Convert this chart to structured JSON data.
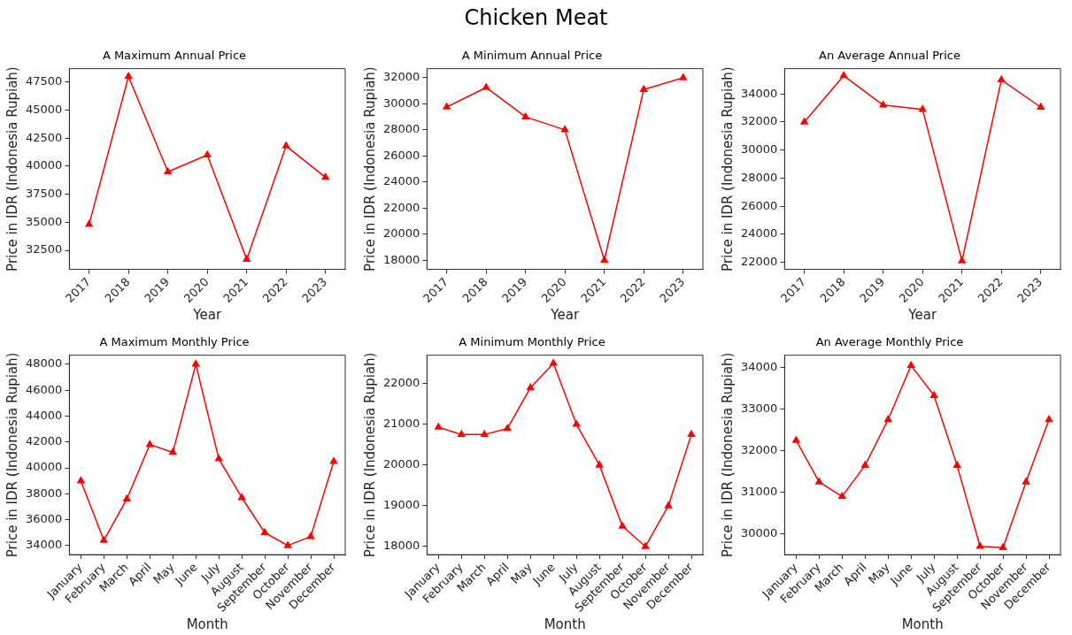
{
  "chart_data": [
    {
      "type": "line",
      "title": "A Maximum Annual Price",
      "annotations": [
        "Chicken Meat"
      ],
      "xlabel": "Year",
      "ylabel": "Price in IDR (Indonesia Rupiah)",
      "categories": [
        "2017",
        "2018",
        "2019",
        "2020",
        "2021",
        "2022",
        "2023"
      ],
      "values": [
        34800,
        48000,
        39500,
        41000,
        31700,
        41800,
        39000
      ],
      "color": "#ff0000",
      "ylim": [
        30800,
        48700
      ],
      "yticks": [
        32500,
        35000,
        37500,
        40000,
        42500,
        45000,
        47500
      ],
      "grid": false,
      "marker": "triangle",
      "line_style": "solid"
    },
    {
      "type": "line",
      "title": "A Minimum Annual Price",
      "xlabel": "Year",
      "ylabel": "Price in IDR (Indonesia Rupiah)",
      "categories": [
        "2017",
        "2018",
        "2019",
        "2020",
        "2021",
        "2022",
        "2023"
      ],
      "values": [
        29750,
        31250,
        29000,
        28000,
        18000,
        31100,
        32000
      ],
      "color": "#ff0000",
      "ylim": [
        17300,
        32700
      ],
      "yticks": [
        18000,
        20000,
        22000,
        24000,
        26000,
        28000,
        30000,
        32000
      ],
      "grid": false,
      "marker": "triangle",
      "line_style": "solid"
    },
    {
      "type": "line",
      "title": "An Average Annual Price",
      "xlabel": "Year",
      "ylabel": "Price in IDR (Indonesia Rupiah)",
      "categories": [
        "2017",
        "2018",
        "2019",
        "2020",
        "2021",
        "2022",
        "2023"
      ],
      "values": [
        32000,
        35300,
        33200,
        32900,
        22100,
        35000,
        33050
      ],
      "color": "#ff0000",
      "ylim": [
        21500,
        35800
      ],
      "yticks": [
        22000,
        24000,
        26000,
        28000,
        30000,
        32000,
        34000
      ],
      "grid": false,
      "marker": "triangle",
      "line_style": "solid"
    },
    {
      "type": "line",
      "title": "A Maximum Monthly Price",
      "xlabel": "Month",
      "ylabel": "Price in IDR (Indonesia Rupiah)",
      "categories": [
        "January",
        "February",
        "March",
        "April",
        "May",
        "June",
        "July",
        "August",
        "September",
        "October",
        "November",
        "December"
      ],
      "values": [
        39000,
        34400,
        37600,
        41800,
        41200,
        48000,
        40700,
        37700,
        35000,
        34000,
        34700,
        40500
      ],
      "color": "#ff0000",
      "ylim": [
        33300,
        48700
      ],
      "yticks": [
        34000,
        36000,
        38000,
        40000,
        42000,
        44000,
        46000,
        48000
      ],
      "grid": false,
      "marker": "triangle",
      "line_style": "solid"
    },
    {
      "type": "line",
      "title": "A Minimum Monthly Price",
      "xlabel": "Month",
      "ylabel": "Price in IDR (Indonesia Rupiah)",
      "categories": [
        "January",
        "February",
        "March",
        "April",
        "May",
        "June",
        "July",
        "August",
        "September",
        "October",
        "November",
        "December"
      ],
      "values": [
        20930,
        20750,
        20750,
        20900,
        21900,
        22500,
        21000,
        20000,
        18500,
        18000,
        19000,
        20750
      ],
      "color": "#ff0000",
      "ylim": [
        17800,
        22700
      ],
      "yticks": [
        18000,
        19000,
        20000,
        21000,
        22000
      ],
      "grid": false,
      "marker": "triangle",
      "line_style": "solid"
    },
    {
      "type": "line",
      "title": "An Average Monthly Price",
      "xlabel": "Month",
      "ylabel": "Price in IDR (Indonesia Rupiah)",
      "categories": [
        "January",
        "February",
        "March",
        "April",
        "May",
        "June",
        "July",
        "August",
        "September",
        "October",
        "November",
        "December"
      ],
      "values": [
        32250,
        31250,
        30900,
        31650,
        32750,
        34050,
        33330,
        31650,
        29700,
        29670,
        31250,
        32750
      ],
      "color": "#ff0000",
      "ylim": [
        29500,
        34300
      ],
      "yticks": [
        30000,
        31000,
        32000,
        33000,
        34000
      ],
      "grid": false,
      "marker": "triangle",
      "line_style": "solid"
    }
  ]
}
